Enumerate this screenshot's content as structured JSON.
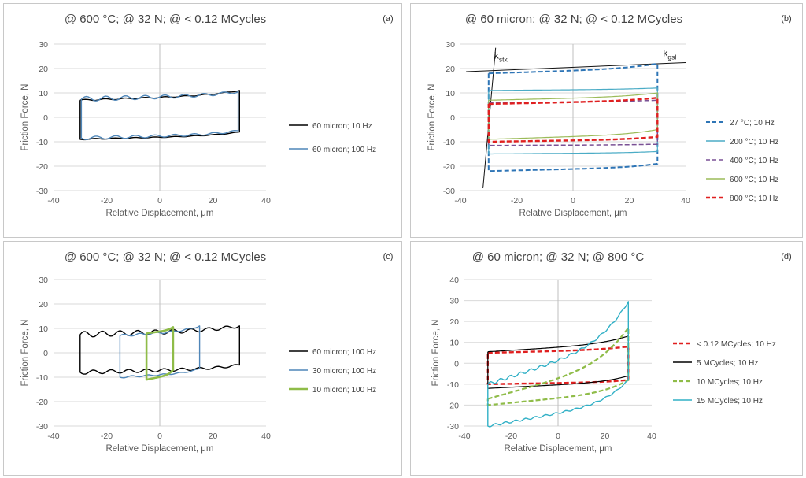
{
  "chart_data": [
    {
      "type": "line",
      "panel_label": "(a)",
      "title": "@ 600 °C; @ 32 N; @ < 0.12 MCycles",
      "xlabel": "Relative Displacement, μm",
      "ylabel": "Friction Force, N",
      "xlim": [
        -40,
        40
      ],
      "ylim": [
        -30,
        30
      ],
      "xticks": [
        "-40",
        "-20",
        "0",
        "20",
        "40"
      ],
      "yticks": [
        "30",
        "20",
        "10",
        "0",
        "-10",
        "-20",
        "-30"
      ],
      "grid": true,
      "legend_position": "right",
      "series": [
        {
          "name": "60 micron; 10 Hz",
          "color": "#000000",
          "dash": "solid",
          "width": 1.4,
          "loop": {
            "xmin": -30,
            "xmax": 30,
            "top": [
              7,
              11
            ],
            "bottom": [
              -9,
              -6
            ],
            "wiggle": 0.3,
            "cycles": 8
          }
        },
        {
          "name": "60 micron; 100 Hz",
          "color": "#4f86b8",
          "dash": "solid",
          "width": 1.4,
          "loop": {
            "xmin": -29.5,
            "xmax": 29.5,
            "top": [
              7.5,
              10.5
            ],
            "bottom": [
              -8.5,
              -5.5
            ],
            "wiggle": 1,
            "cycles": 8
          }
        }
      ]
    },
    {
      "type": "line",
      "panel_label": "(b)",
      "title": "@ 60 micron; @ 32 N; @ < 0.12 MCycles",
      "xlabel": "Relative Displacement, μm",
      "ylabel": "Friction Force, N",
      "xlim": [
        -40,
        40
      ],
      "ylim": [
        -30,
        30
      ],
      "xticks": [
        "-40",
        "-20",
        "0",
        "20",
        "40"
      ],
      "yticks": [
        "30",
        "20",
        "10",
        "0",
        "-10",
        "-20",
        "-30"
      ],
      "grid": true,
      "legend_position": "right",
      "annotations": [
        {
          "text": "k",
          "sub": "stk",
          "at": [
            -28,
            24
          ]
        },
        {
          "text": "k",
          "sub": "gsl",
          "at": [
            32,
            25
          ]
        }
      ],
      "reference_lines": [
        {
          "from": [
            -38,
            18.7
          ],
          "to": [
            40,
            22.4
          ]
        },
        {
          "from": [
            -32,
            -29
          ],
          "to": [
            -27.5,
            28.5
          ]
        }
      ],
      "series": [
        {
          "name": "27 °C; 10 Hz",
          "color": "#2e75b6",
          "dash": "dashed",
          "width": 2,
          "loop": {
            "xmin": -30,
            "xmax": 30,
            "top": [
              18,
              22
            ],
            "bottom": [
              -22,
              -19
            ],
            "wiggle": 0,
            "cycles": 0
          }
        },
        {
          "name": "200 °C; 10 Hz",
          "color": "#4bacc6",
          "dash": "solid",
          "width": 1.2,
          "loop": {
            "xmin": -30,
            "xmax": 30,
            "top": [
              11,
              12
            ],
            "bottom": [
              -15,
              -14
            ],
            "wiggle": 0,
            "cycles": 0
          }
        },
        {
          "name": "400 °C; 10 Hz",
          "color": "#7a5195",
          "dash": "dashed",
          "width": 1.5,
          "loop": {
            "xmin": -30,
            "xmax": 30,
            "top": [
              6,
              7
            ],
            "bottom": [
              -11.5,
              -11
            ],
            "wiggle": 0,
            "cycles": 0
          }
        },
        {
          "name": "600 °C; 10 Hz",
          "color": "#9bbb59",
          "dash": "solid",
          "width": 1.2,
          "loop": {
            "xmin": -30,
            "xmax": 30,
            "top": [
              7,
              10
            ],
            "bottom": [
              -9,
              -5
            ],
            "wiggle": 0,
            "cycles": 0
          }
        },
        {
          "name": "800 °C; 10 Hz",
          "color": "#e01f1f",
          "dash": "dashed",
          "width": 2.4,
          "loop": {
            "xmin": -30,
            "xmax": 30,
            "top": [
              5.5,
              8
            ],
            "bottom": [
              -10,
              -8
            ],
            "wiggle": 0,
            "cycles": 0
          }
        }
      ]
    },
    {
      "type": "line",
      "panel_label": "(c)",
      "title": "@ 600 °C; @ 32 N; @  < 0.12 MCycles",
      "xlabel": "Relative Displacement, μm",
      "ylabel": "Friction Force, N",
      "xlim": [
        -40,
        40
      ],
      "ylim": [
        -30,
        30
      ],
      "xticks": [
        "-40",
        "-20",
        "0",
        "20",
        "40"
      ],
      "yticks": [
        "30",
        "20",
        "10",
        "0",
        "-10",
        "-20",
        "-30"
      ],
      "grid": true,
      "legend_position": "right",
      "series": [
        {
          "name": "60 micron; 100 Hz",
          "color": "#000000",
          "dash": "solid",
          "width": 1.4,
          "loop": {
            "xmin": -30,
            "xmax": 30,
            "top": [
              7.5,
              11
            ],
            "bottom": [
              -8,
              -5
            ],
            "wiggle": 1.2,
            "cycles": 9
          }
        },
        {
          "name": "30 micron; 100 Hz",
          "color": "#4f86b8",
          "dash": "solid",
          "width": 1.4,
          "loop": {
            "xmin": -15,
            "xmax": 15,
            "top": [
              7,
              11
            ],
            "bottom": [
              -10,
              -6.5
            ],
            "wiggle": 0.5,
            "cycles": 5
          }
        },
        {
          "name": "10 micron; 100 Hz",
          "color": "#8fbc48",
          "dash": "solid",
          "width": 2.6,
          "loop": {
            "xmin": -5,
            "xmax": 5,
            "top": [
              8,
              10.5
            ],
            "bottom": [
              -11,
              -7
            ],
            "wiggle": 0,
            "cycles": 0
          }
        }
      ]
    },
    {
      "type": "line",
      "panel_label": "(d)",
      "title": "@ 60 micron; @ 32 N; @ 800 °C",
      "xlabel": "Relative Displacement, μm",
      "ylabel": "Friction Force, N",
      "xlim": [
        -40,
        40
      ],
      "ylim": [
        -30,
        40
      ],
      "xticks": [
        "-40",
        "-20",
        "0",
        "20",
        "40"
      ],
      "yticks": [
        "40",
        "30",
        "20",
        "10",
        "0",
        "-10",
        "-20",
        "-30"
      ],
      "grid": true,
      "legend_position": "right",
      "series": [
        {
          "name": "< 0.12 MCycles; 10 Hz",
          "color": "#e01f1f",
          "dash": "dashed",
          "width": 2.4,
          "loop": {
            "xmin": -30,
            "xmax": 30,
            "top": [
              5,
              8
            ],
            "bottom": [
              -10,
              -8
            ],
            "wiggle": 0,
            "cycles": 0
          }
        },
        {
          "name": "5 MCycles; 10 Hz",
          "color": "#000000",
          "dash": "solid",
          "width": 1.2,
          "loop": {
            "xmin": -30,
            "xmax": 30,
            "top": [
              5.5,
              13
            ],
            "bottom": [
              -12,
              -6
            ],
            "wiggle": 0,
            "cycles": 0
          }
        },
        {
          "name": "10 MCycles; 10 Hz",
          "color": "#8fbc48",
          "dash": "dashed",
          "width": 2.2,
          "loop": {
            "xmin": -30,
            "xmax": 30,
            "top": [
              -17,
              17
            ],
            "bottom": [
              -20,
              -8
            ],
            "wiggle": 0,
            "cycles": 0
          }
        },
        {
          "name": "15 MCycles; 10 Hz",
          "color": "#31b0c6",
          "dash": "solid",
          "width": 1.4,
          "loop": {
            "xmin": -30,
            "xmax": 30,
            "top": [
              -10,
              29.5
            ],
            "bottom": [
              -30,
              -8
            ],
            "wiggle": 0.8,
            "cycles": 14
          }
        }
      ]
    }
  ]
}
